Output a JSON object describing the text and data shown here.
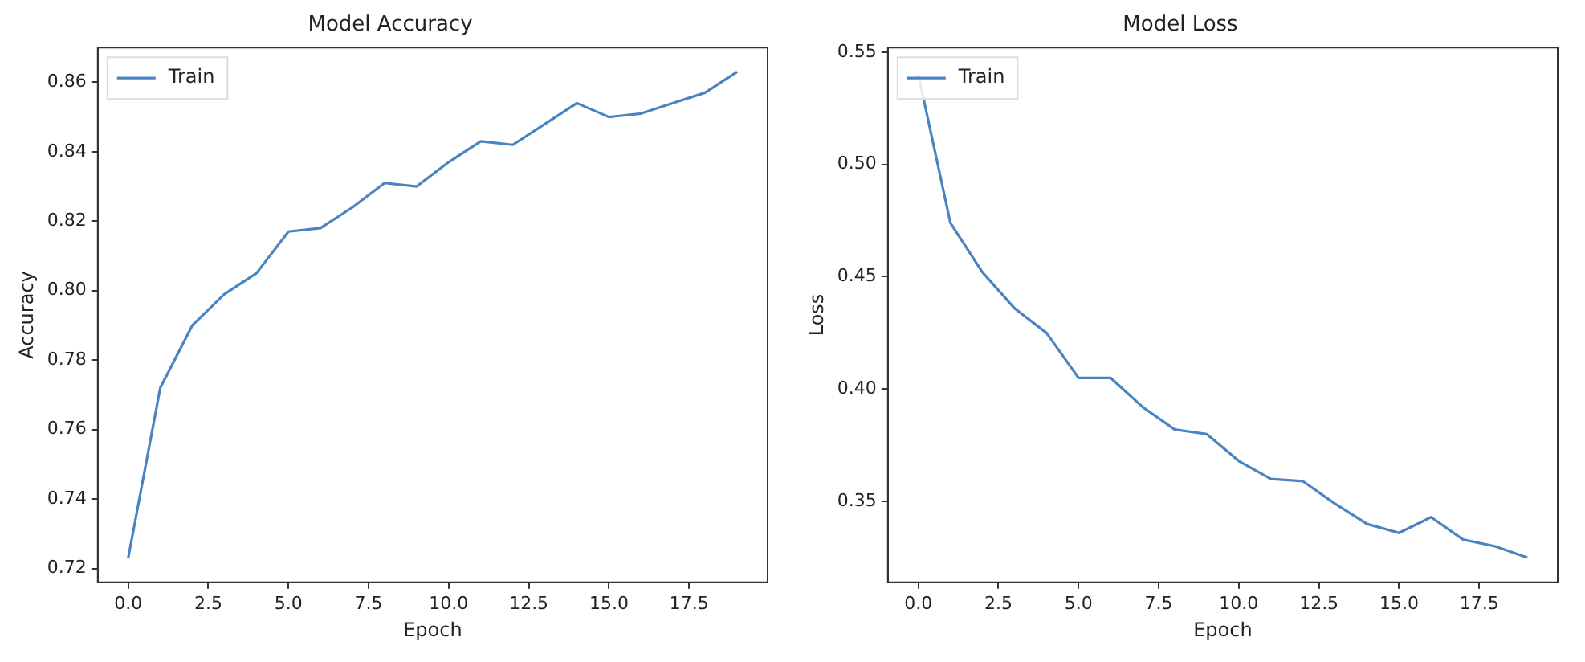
{
  "chart_data": [
    {
      "type": "line",
      "title": "Model Accuracy",
      "xlabel": "Epoch",
      "ylabel": "Accuracy",
      "x": [
        0,
        1,
        2,
        3,
        4,
        5,
        6,
        7,
        8,
        9,
        10,
        11,
        12,
        13,
        14,
        15,
        16,
        17,
        18,
        19
      ],
      "series": [
        {
          "name": "Train",
          "color": "#4a84c0",
          "values": [
            0.723,
            0.772,
            0.79,
            0.799,
            0.805,
            0.817,
            0.818,
            0.824,
            0.831,
            0.83,
            0.837,
            0.843,
            0.842,
            0.848,
            0.854,
            0.85,
            0.851,
            0.854,
            0.857,
            0.863
          ]
        }
      ],
      "xlim": [
        -0.95,
        19.95
      ],
      "ylim": [
        0.716,
        0.87
      ],
      "xticks": [
        {
          "value": 0,
          "label": "0.0"
        },
        {
          "value": 2.5,
          "label": "2.5"
        },
        {
          "value": 5,
          "label": "5.0"
        },
        {
          "value": 7.5,
          "label": "7.5"
        },
        {
          "value": 10,
          "label": "10.0"
        },
        {
          "value": 12.5,
          "label": "12.5"
        },
        {
          "value": 15,
          "label": "15.0"
        },
        {
          "value": 17.5,
          "label": "17.5"
        }
      ],
      "yticks": [
        {
          "value": 0.72,
          "label": "0.72"
        },
        {
          "value": 0.74,
          "label": "0.74"
        },
        {
          "value": 0.76,
          "label": "0.76"
        },
        {
          "value": 0.78,
          "label": "0.78"
        },
        {
          "value": 0.8,
          "label": "0.80"
        },
        {
          "value": 0.82,
          "label": "0.82"
        },
        {
          "value": 0.84,
          "label": "0.84"
        },
        {
          "value": 0.86,
          "label": "0.86"
        }
      ],
      "legend": "top left",
      "grid": false
    },
    {
      "type": "line",
      "title": "Model Loss",
      "xlabel": "Epoch",
      "ylabel": "Loss",
      "x": [
        0,
        1,
        2,
        3,
        4,
        5,
        6,
        7,
        8,
        9,
        10,
        11,
        12,
        13,
        14,
        15,
        16,
        17,
        18,
        19
      ],
      "series": [
        {
          "name": "Train",
          "color": "#4a84c0",
          "values": [
            0.54,
            0.474,
            0.452,
            0.436,
            0.425,
            0.405,
            0.405,
            0.392,
            0.382,
            0.38,
            0.368,
            0.36,
            0.359,
            0.349,
            0.34,
            0.336,
            0.343,
            0.333,
            0.33,
            0.325
          ]
        }
      ],
      "xlim": [
        -0.95,
        19.95
      ],
      "ylim": [
        0.314,
        0.552
      ],
      "xticks": [
        {
          "value": 0,
          "label": "0.0"
        },
        {
          "value": 2.5,
          "label": "2.5"
        },
        {
          "value": 5,
          "label": "5.0"
        },
        {
          "value": 7.5,
          "label": "7.5"
        },
        {
          "value": 10,
          "label": "10.0"
        },
        {
          "value": 12.5,
          "label": "12.5"
        },
        {
          "value": 15,
          "label": "15.0"
        },
        {
          "value": 17.5,
          "label": "17.5"
        }
      ],
      "yticks": [
        {
          "value": 0.35,
          "label": "0.35"
        },
        {
          "value": 0.4,
          "label": "0.40"
        },
        {
          "value": 0.45,
          "label": "0.45"
        },
        {
          "value": 0.5,
          "label": "0.50"
        },
        {
          "value": 0.55,
          "label": "0.55"
        }
      ],
      "legend": "top left",
      "grid": false
    }
  ]
}
